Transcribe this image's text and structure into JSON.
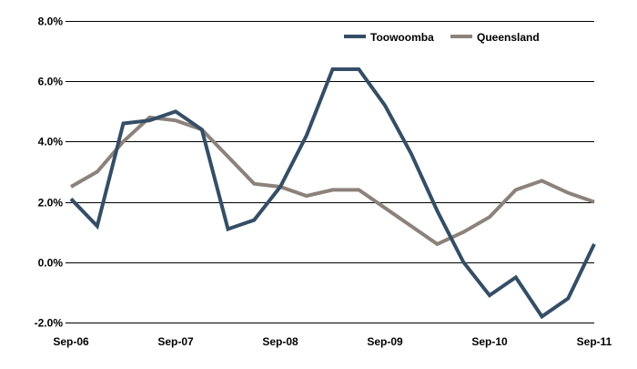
{
  "chart_data": {
    "type": "line",
    "title": "",
    "xlabel": "",
    "ylabel": "",
    "ylim": [
      -2,
      8
    ],
    "yticks": [
      -2,
      0,
      2,
      4,
      6,
      8
    ],
    "ytick_labels": [
      "-2.0%",
      "0.0%",
      "2.0%",
      "4.0%",
      "6.0%",
      "8.0%"
    ],
    "xtick_labels": [
      "Sep-06",
      "Sep-07",
      "Sep-08",
      "Sep-09",
      "Sep-10",
      "Sep-11"
    ],
    "xtick_index": [
      0,
      4,
      8,
      12,
      16,
      20
    ],
    "grid": true,
    "legend_position": "top-right",
    "series": [
      {
        "name": "Toowoomba",
        "color": "#344E66",
        "values": [
          2.1,
          1.2,
          4.6,
          4.7,
          5.0,
          4.4,
          1.1,
          1.4,
          2.5,
          4.2,
          6.4,
          6.4,
          5.2,
          3.6,
          1.7,
          0.0,
          -1.1,
          -0.5,
          -1.8,
          -1.2,
          0.6
        ]
      },
      {
        "name": "Queensland",
        "color": "#8C827B",
        "values": [
          2.5,
          3.0,
          4.0,
          4.8,
          4.7,
          4.4,
          3.5,
          2.6,
          2.5,
          2.2,
          2.4,
          2.4,
          1.8,
          1.2,
          0.6,
          1.0,
          1.5,
          2.4,
          2.7,
          2.3,
          2.0
        ]
      }
    ]
  }
}
